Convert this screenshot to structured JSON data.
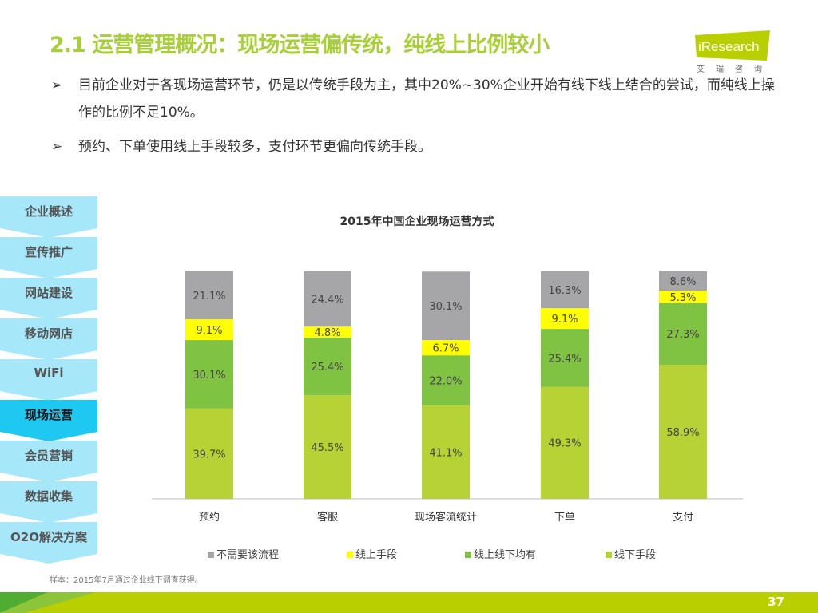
{
  "title": "2.1 运营管理概况：现场运营偏传统，纯线上比例较小",
  "logo": {
    "name": "iResearch",
    "sub": "艾瑞咨询"
  },
  "bullets": [
    "目前企业对于各现场运营环节，仍是以传统手段为主，其中20%~30%企业开始有线下线上结合的尝试，而纯线上操作的比例不足10%。",
    "预约、下单使用线上手段较多，支付环节更偏向传统手段。"
  ],
  "nav": [
    {
      "label": "企业概述"
    },
    {
      "label": "宣传推广"
    },
    {
      "label": "网站建设"
    },
    {
      "label": "移动网店"
    },
    {
      "label": "WiFi"
    },
    {
      "label": "现场运营",
      "active": true
    },
    {
      "label": "会员营销"
    },
    {
      "label": "数据收集"
    },
    {
      "label": "O2O解决方案"
    }
  ],
  "chart_data": {
    "type": "bar",
    "stacked": true,
    "title": "2015年中国企业现场运营方式",
    "categories": [
      "预约",
      "客服",
      "现场客流统计",
      "下单",
      "支付"
    ],
    "series": [
      {
        "name": "线下手段",
        "color": "#b6d234",
        "values": [
          39.7,
          45.5,
          41.1,
          49.3,
          58.9
        ]
      },
      {
        "name": "线上线下均有",
        "color": "#80c242",
        "values": [
          30.1,
          25.4,
          22.0,
          25.4,
          27.3
        ]
      },
      {
        "name": "线上手段",
        "color": "#ffff00",
        "values": [
          9.1,
          4.8,
          6.7,
          9.1,
          5.3
        ]
      },
      {
        "name": "不需要该流程",
        "color": "#a6a6a8",
        "values": [
          21.1,
          24.4,
          30.1,
          16.3,
          8.6
        ]
      }
    ],
    "legend_order": [
      "不需要该流程",
      "线上手段",
      "线上线下均有",
      "线下手段"
    ],
    "ylim": [
      0,
      100
    ],
    "legend": "bottom"
  },
  "note": "样本：2015年7月通过企业线下调查获得。",
  "page": "37"
}
